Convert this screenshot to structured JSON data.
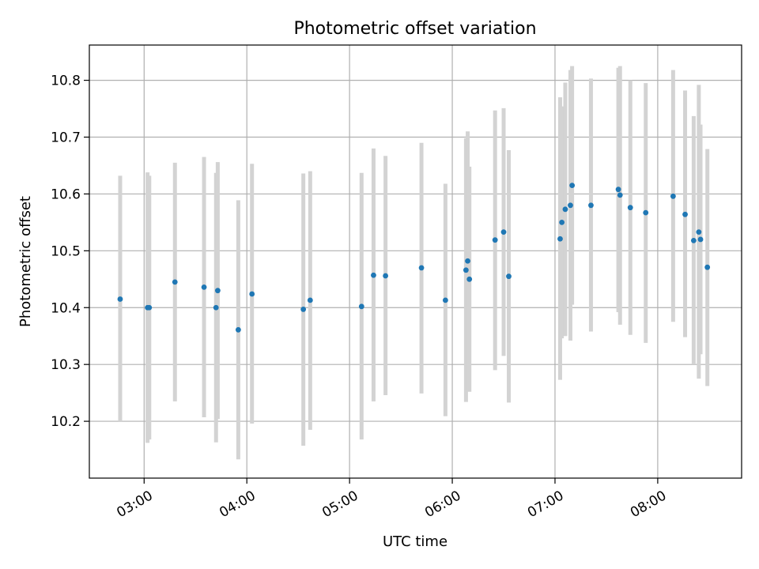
{
  "chart_data": {
    "type": "scatter",
    "title": "Photometric offset variation",
    "xlabel": "UTC time",
    "ylabel": "Photometric offset",
    "x_tick_labels": [
      "03:00",
      "04:00",
      "05:00",
      "06:00",
      "07:00",
      "08:00"
    ],
    "x_ticks": [
      "03:00",
      "04:00",
      "05:00",
      "06:00",
      "07:00",
      "08:00"
    ],
    "y_ticks": [
      10.2,
      10.3,
      10.4,
      10.5,
      10.6,
      10.7,
      10.8
    ],
    "y_tick_labels": [
      "10.2",
      "10.3",
      "10.4",
      "10.5",
      "10.6",
      "10.7",
      "10.8"
    ],
    "xlim": [
      "02:28",
      "08:49"
    ],
    "ylim": [
      10.1,
      10.862
    ],
    "grid": true,
    "legend": false,
    "colors": {
      "marker": "#1f77b4",
      "errorbar": "#d3d3d3",
      "grid": "#b0b0b0"
    },
    "points": [
      {
        "x": "02:46",
        "y": 10.415,
        "ylo": 10.2,
        "yhi": 10.632
      },
      {
        "x": "03:02",
        "y": 10.4,
        "ylo": 10.162,
        "yhi": 10.638
      },
      {
        "x": "03:03",
        "y": 10.4,
        "ylo": 10.168,
        "yhi": 10.632
      },
      {
        "x": "03:18",
        "y": 10.445,
        "ylo": 10.235,
        "yhi": 10.655
      },
      {
        "x": "03:35",
        "y": 10.436,
        "ylo": 10.207,
        "yhi": 10.665
      },
      {
        "x": "03:42",
        "y": 10.4,
        "ylo": 10.163,
        "yhi": 10.637
      },
      {
        "x": "03:43",
        "y": 10.43,
        "ylo": 10.204,
        "yhi": 10.656
      },
      {
        "x": "03:55",
        "y": 10.361,
        "ylo": 10.133,
        "yhi": 10.589
      },
      {
        "x": "04:03",
        "y": 10.424,
        "ylo": 10.196,
        "yhi": 10.653
      },
      {
        "x": "04:33",
        "y": 10.397,
        "ylo": 10.157,
        "yhi": 10.636
      },
      {
        "x": "04:37",
        "y": 10.413,
        "ylo": 10.185,
        "yhi": 10.64
      },
      {
        "x": "05:07",
        "y": 10.402,
        "ylo": 10.168,
        "yhi": 10.637
      },
      {
        "x": "05:14",
        "y": 10.457,
        "ylo": 10.235,
        "yhi": 10.68
      },
      {
        "x": "05:21",
        "y": 10.456,
        "ylo": 10.246,
        "yhi": 10.667
      },
      {
        "x": "05:42",
        "y": 10.47,
        "ylo": 10.249,
        "yhi": 10.69
      },
      {
        "x": "05:56",
        "y": 10.413,
        "ylo": 10.209,
        "yhi": 10.618
      },
      {
        "x": "06:08",
        "y": 10.466,
        "ylo": 10.234,
        "yhi": 10.698
      },
      {
        "x": "06:09",
        "y": 10.482,
        "ylo": 10.254,
        "yhi": 10.71
      },
      {
        "x": "06:10",
        "y": 10.45,
        "ylo": 10.252,
        "yhi": 10.648
      },
      {
        "x": "06:25",
        "y": 10.519,
        "ylo": 10.29,
        "yhi": 10.747
      },
      {
        "x": "06:30",
        "y": 10.533,
        "ylo": 10.315,
        "yhi": 10.751
      },
      {
        "x": "06:33",
        "y": 10.455,
        "ylo": 10.233,
        "yhi": 10.677
      },
      {
        "x": "07:03",
        "y": 10.521,
        "ylo": 10.273,
        "yhi": 10.77
      },
      {
        "x": "07:04",
        "y": 10.55,
        "ylo": 10.346,
        "yhi": 10.754
      },
      {
        "x": "07:06",
        "y": 10.573,
        "ylo": 10.35,
        "yhi": 10.796
      },
      {
        "x": "07:09",
        "y": 10.58,
        "ylo": 10.342,
        "yhi": 10.818
      },
      {
        "x": "07:10",
        "y": 10.615,
        "ylo": 10.405,
        "yhi": 10.825
      },
      {
        "x": "07:21",
        "y": 10.58,
        "ylo": 10.358,
        "yhi": 10.803
      },
      {
        "x": "07:37",
        "y": 10.608,
        "ylo": 10.392,
        "yhi": 10.822
      },
      {
        "x": "07:38",
        "y": 10.598,
        "ylo": 10.37,
        "yhi": 10.825
      },
      {
        "x": "07:44",
        "y": 10.576,
        "ylo": 10.352,
        "yhi": 10.8
      },
      {
        "x": "07:53",
        "y": 10.567,
        "ylo": 10.338,
        "yhi": 10.795
      },
      {
        "x": "08:09",
        "y": 10.596,
        "ylo": 10.375,
        "yhi": 10.818
      },
      {
        "x": "08:16",
        "y": 10.564,
        "ylo": 10.348,
        "yhi": 10.782
      },
      {
        "x": "08:21",
        "y": 10.518,
        "ylo": 10.3,
        "yhi": 10.737
      },
      {
        "x": "08:24",
        "y": 10.533,
        "ylo": 10.275,
        "yhi": 10.792
      },
      {
        "x": "08:25",
        "y": 10.52,
        "ylo": 10.318,
        "yhi": 10.722
      },
      {
        "x": "08:29",
        "y": 10.471,
        "ylo": 10.262,
        "yhi": 10.679
      }
    ]
  }
}
